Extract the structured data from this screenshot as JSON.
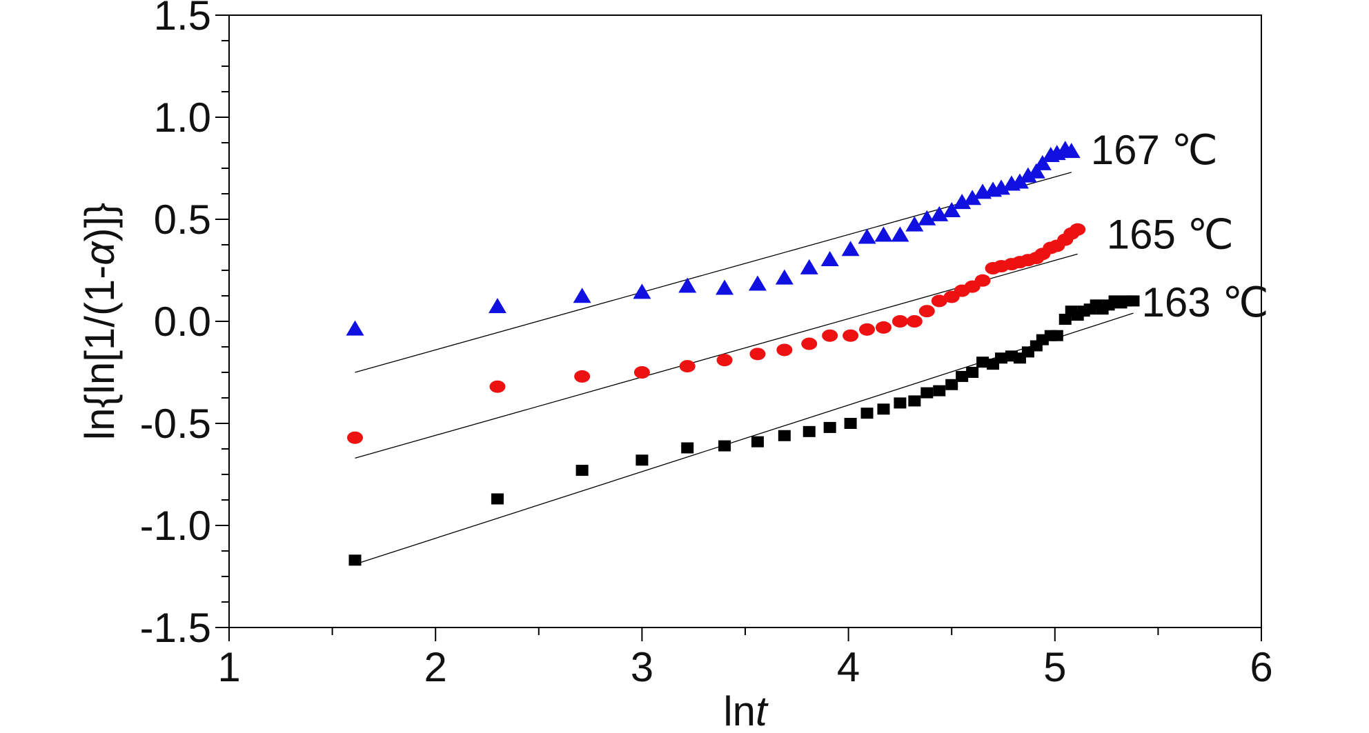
{
  "chart_data": {
    "type": "scatter",
    "title": "",
    "xlabel": "lnt",
    "xlabel_parts": {
      "prefix": "ln",
      "italic": "t"
    },
    "ylabel": "ln{ln[1/(1-α)]}",
    "ylabel_parts": {
      "prefix": "ln{ln[1/(1-",
      "italic": "α",
      "suffix": ")]}"
    },
    "xlim": [
      1,
      6
    ],
    "ylim": [
      -1.5,
      1.5
    ],
    "x_ticks": [
      "1",
      "2",
      "3",
      "4",
      "5",
      "6"
    ],
    "y_ticks": [
      "1.5",
      "1.0",
      "0.5",
      "0.0",
      "-0.5",
      "-1.0",
      "-1.5"
    ],
    "grid": false,
    "legend": "none",
    "series": [
      {
        "name": "167 ℃",
        "marker": "triangle",
        "color": "#1010e0",
        "points": [
          [
            1.61,
            -0.04
          ],
          [
            2.3,
            0.07
          ],
          [
            2.71,
            0.12
          ],
          [
            3.0,
            0.14
          ],
          [
            3.22,
            0.17
          ],
          [
            3.4,
            0.16
          ],
          [
            3.56,
            0.18
          ],
          [
            3.69,
            0.21
          ],
          [
            3.81,
            0.26
          ],
          [
            3.91,
            0.3
          ],
          [
            4.01,
            0.35
          ],
          [
            4.09,
            0.41
          ],
          [
            4.17,
            0.42
          ],
          [
            4.25,
            0.42
          ],
          [
            4.32,
            0.47
          ],
          [
            4.38,
            0.5
          ],
          [
            4.44,
            0.52
          ],
          [
            4.5,
            0.54
          ],
          [
            4.55,
            0.58
          ],
          [
            4.6,
            0.6
          ],
          [
            4.65,
            0.63
          ],
          [
            4.7,
            0.64
          ],
          [
            4.74,
            0.65
          ],
          [
            4.79,
            0.67
          ],
          [
            4.83,
            0.68
          ],
          [
            4.87,
            0.71
          ],
          [
            4.91,
            0.73
          ],
          [
            4.94,
            0.77
          ],
          [
            4.98,
            0.81
          ],
          [
            5.01,
            0.82
          ],
          [
            5.05,
            0.84
          ],
          [
            5.08,
            0.83
          ]
        ],
        "fit": [
          [
            1.61,
            -0.25
          ],
          [
            5.08,
            0.73
          ]
        ]
      },
      {
        "name": "165 ℃",
        "marker": "circle",
        "color": "#ee1111",
        "points": [
          [
            1.61,
            -0.57
          ],
          [
            2.3,
            -0.32
          ],
          [
            2.71,
            -0.27
          ],
          [
            3.0,
            -0.25
          ],
          [
            3.22,
            -0.22
          ],
          [
            3.4,
            -0.19
          ],
          [
            3.56,
            -0.16
          ],
          [
            3.69,
            -0.14
          ],
          [
            3.81,
            -0.11
          ],
          [
            3.91,
            -0.07
          ],
          [
            4.01,
            -0.07
          ],
          [
            4.09,
            -0.04
          ],
          [
            4.17,
            -0.03
          ],
          [
            4.25,
            0.0
          ],
          [
            4.32,
            0.0
          ],
          [
            4.38,
            0.05
          ],
          [
            4.44,
            0.1
          ],
          [
            4.5,
            0.12
          ],
          [
            4.55,
            0.15
          ],
          [
            4.6,
            0.17
          ],
          [
            4.65,
            0.2
          ],
          [
            4.7,
            0.26
          ],
          [
            4.74,
            0.27
          ],
          [
            4.79,
            0.28
          ],
          [
            4.83,
            0.29
          ],
          [
            4.87,
            0.3
          ],
          [
            4.91,
            0.31
          ],
          [
            4.94,
            0.33
          ],
          [
            4.98,
            0.36
          ],
          [
            5.01,
            0.37
          ],
          [
            5.05,
            0.4
          ],
          [
            5.08,
            0.43
          ],
          [
            5.11,
            0.45
          ]
        ],
        "fit": [
          [
            1.61,
            -0.67
          ],
          [
            5.11,
            0.33
          ]
        ]
      },
      {
        "name": "163 ℃",
        "marker": "square",
        "color": "#000000",
        "points": [
          [
            1.61,
            -1.17
          ],
          [
            2.3,
            -0.87
          ],
          [
            2.71,
            -0.73
          ],
          [
            3.0,
            -0.68
          ],
          [
            3.22,
            -0.62
          ],
          [
            3.4,
            -0.61
          ],
          [
            3.56,
            -0.59
          ],
          [
            3.69,
            -0.56
          ],
          [
            3.81,
            -0.54
          ],
          [
            3.91,
            -0.52
          ],
          [
            4.01,
            -0.5
          ],
          [
            4.09,
            -0.45
          ],
          [
            4.17,
            -0.43
          ],
          [
            4.25,
            -0.4
          ],
          [
            4.32,
            -0.39
          ],
          [
            4.38,
            -0.35
          ],
          [
            4.44,
            -0.34
          ],
          [
            4.5,
            -0.31
          ],
          [
            4.55,
            -0.27
          ],
          [
            4.6,
            -0.25
          ],
          [
            4.65,
            -0.2
          ],
          [
            4.7,
            -0.21
          ],
          [
            4.74,
            -0.18
          ],
          [
            4.79,
            -0.17
          ],
          [
            4.83,
            -0.18
          ],
          [
            4.87,
            -0.15
          ],
          [
            4.91,
            -0.12
          ],
          [
            4.94,
            -0.09
          ],
          [
            4.98,
            -0.07
          ],
          [
            5.01,
            -0.07
          ],
          [
            5.05,
            0.01
          ],
          [
            5.08,
            0.05
          ],
          [
            5.11,
            0.03
          ],
          [
            5.14,
            0.05
          ],
          [
            5.17,
            0.06
          ],
          [
            5.2,
            0.08
          ],
          [
            5.23,
            0.06
          ],
          [
            5.26,
            0.08
          ],
          [
            5.29,
            0.1
          ],
          [
            5.32,
            0.09
          ],
          [
            5.35,
            0.1
          ],
          [
            5.38,
            0.1
          ]
        ],
        "fit": [
          [
            1.61,
            -1.19
          ],
          [
            5.38,
            0.04
          ]
        ]
      }
    ]
  }
}
